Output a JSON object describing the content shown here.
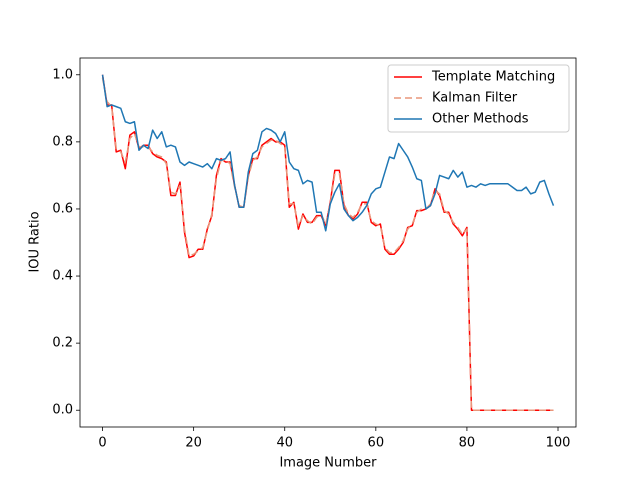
{
  "chart_data": {
    "type": "line",
    "xlabel": "Image Number",
    "ylabel": "IOU Ratio",
    "x": [
      0,
      1,
      2,
      3,
      4,
      5,
      6,
      7,
      8,
      9,
      10,
      11,
      12,
      13,
      14,
      15,
      16,
      17,
      18,
      19,
      20,
      21,
      22,
      23,
      24,
      25,
      26,
      27,
      28,
      29,
      30,
      31,
      32,
      33,
      34,
      35,
      36,
      37,
      38,
      39,
      40,
      41,
      42,
      43,
      44,
      45,
      46,
      47,
      48,
      49,
      50,
      51,
      52,
      53,
      54,
      55,
      56,
      57,
      58,
      59,
      60,
      61,
      62,
      63,
      64,
      65,
      66,
      67,
      68,
      69,
      70,
      71,
      72,
      73,
      74,
      75,
      76,
      77,
      78,
      79,
      80,
      81,
      82,
      83,
      84,
      85,
      86,
      87,
      88,
      89,
      90,
      91,
      92,
      93,
      94,
      95,
      96,
      97,
      98,
      99
    ],
    "series": [
      {
        "name": "Template Matching",
        "color": "#ff0000",
        "dashed": false,
        "values": [
          1.0,
          0.91,
          0.91,
          0.77,
          0.775,
          0.72,
          0.82,
          0.83,
          0.78,
          0.79,
          0.79,
          0.765,
          0.755,
          0.75,
          0.74,
          0.64,
          0.64,
          0.68,
          0.53,
          0.455,
          0.46,
          0.48,
          0.48,
          0.54,
          0.58,
          0.7,
          0.75,
          0.74,
          0.74,
          0.67,
          0.605,
          0.605,
          0.7,
          0.75,
          0.75,
          0.79,
          0.8,
          0.81,
          0.8,
          0.8,
          0.79,
          0.605,
          0.62,
          0.54,
          0.585,
          0.56,
          0.56,
          0.58,
          0.58,
          0.55,
          0.62,
          0.715,
          0.715,
          0.61,
          0.58,
          0.57,
          0.585,
          0.62,
          0.62,
          0.56,
          0.55,
          0.555,
          0.48,
          0.465,
          0.465,
          0.48,
          0.5,
          0.545,
          0.55,
          0.595,
          0.595,
          0.6,
          0.61,
          0.66,
          0.64,
          0.59,
          0.59,
          0.555,
          0.54,
          0.52,
          0.545,
          0,
          0,
          0,
          0,
          0,
          0,
          0,
          0,
          0,
          0,
          0,
          0,
          0,
          0,
          0,
          0,
          0,
          0,
          0
        ]
      },
      {
        "name": "Kalman Filter",
        "color": "#e9967a",
        "dashed": true,
        "values": [
          0.99,
          0.92,
          0.905,
          0.78,
          0.77,
          0.74,
          0.81,
          0.825,
          0.785,
          0.785,
          0.785,
          0.77,
          0.76,
          0.755,
          0.735,
          0.65,
          0.645,
          0.67,
          0.54,
          0.46,
          0.465,
          0.475,
          0.485,
          0.535,
          0.585,
          0.69,
          0.745,
          0.745,
          0.735,
          0.665,
          0.61,
          0.605,
          0.695,
          0.745,
          0.755,
          0.785,
          0.795,
          0.805,
          0.805,
          0.795,
          0.785,
          0.615,
          0.615,
          0.55,
          0.58,
          0.565,
          0.555,
          0.575,
          0.585,
          0.555,
          0.615,
          0.705,
          0.705,
          0.615,
          0.585,
          0.575,
          0.59,
          0.615,
          0.615,
          0.565,
          0.555,
          0.55,
          0.485,
          0.47,
          0.47,
          0.485,
          0.505,
          0.54,
          0.555,
          0.59,
          0.6,
          0.6,
          0.615,
          0.655,
          0.645,
          0.595,
          0.585,
          0.56,
          0.545,
          0.525,
          0.54,
          0,
          0,
          0,
          0,
          0,
          0,
          0,
          0,
          0,
          0,
          0,
          0,
          0,
          0,
          0,
          0,
          0,
          0,
          0
        ]
      },
      {
        "name": "Other Methods",
        "color": "#1f77b4",
        "dashed": false,
        "values": [
          1.0,
          0.905,
          0.91,
          0.905,
          0.9,
          0.86,
          0.855,
          0.86,
          0.775,
          0.79,
          0.78,
          0.835,
          0.81,
          0.83,
          0.785,
          0.79,
          0.785,
          0.74,
          0.73,
          0.74,
          0.735,
          0.73,
          0.725,
          0.735,
          0.72,
          0.75,
          0.745,
          0.75,
          0.77,
          0.67,
          0.605,
          0.605,
          0.71,
          0.765,
          0.775,
          0.83,
          0.84,
          0.835,
          0.825,
          0.8,
          0.83,
          0.74,
          0.72,
          0.715,
          0.675,
          0.685,
          0.68,
          0.59,
          0.59,
          0.535,
          0.615,
          0.65,
          0.675,
          0.6,
          0.58,
          0.565,
          0.575,
          0.59,
          0.61,
          0.645,
          0.66,
          0.665,
          0.71,
          0.755,
          0.75,
          0.795,
          0.775,
          0.755,
          0.725,
          0.69,
          0.685,
          0.6,
          0.61,
          0.645,
          0.7,
          0.695,
          0.69,
          0.715,
          0.695,
          0.71,
          0.665,
          0.67,
          0.665,
          0.675,
          0.67,
          0.675,
          0.675,
          0.675,
          0.675,
          0.675,
          0.665,
          0.655,
          0.655,
          0.665,
          0.645,
          0.65,
          0.68,
          0.685,
          0.645,
          0.61
        ]
      }
    ],
    "xlim": [
      -4.95,
      103.95
    ],
    "ylim": [
      -0.05,
      1.05
    ],
    "xticks": [
      0,
      20,
      40,
      60,
      80,
      100
    ],
    "yticks": [
      {
        "value": 0,
        "label": "0.0"
      },
      0.2,
      0.4,
      0.6,
      0.8,
      {
        "value": 1,
        "label": "1.0"
      }
    ],
    "legend": "upper right"
  }
}
